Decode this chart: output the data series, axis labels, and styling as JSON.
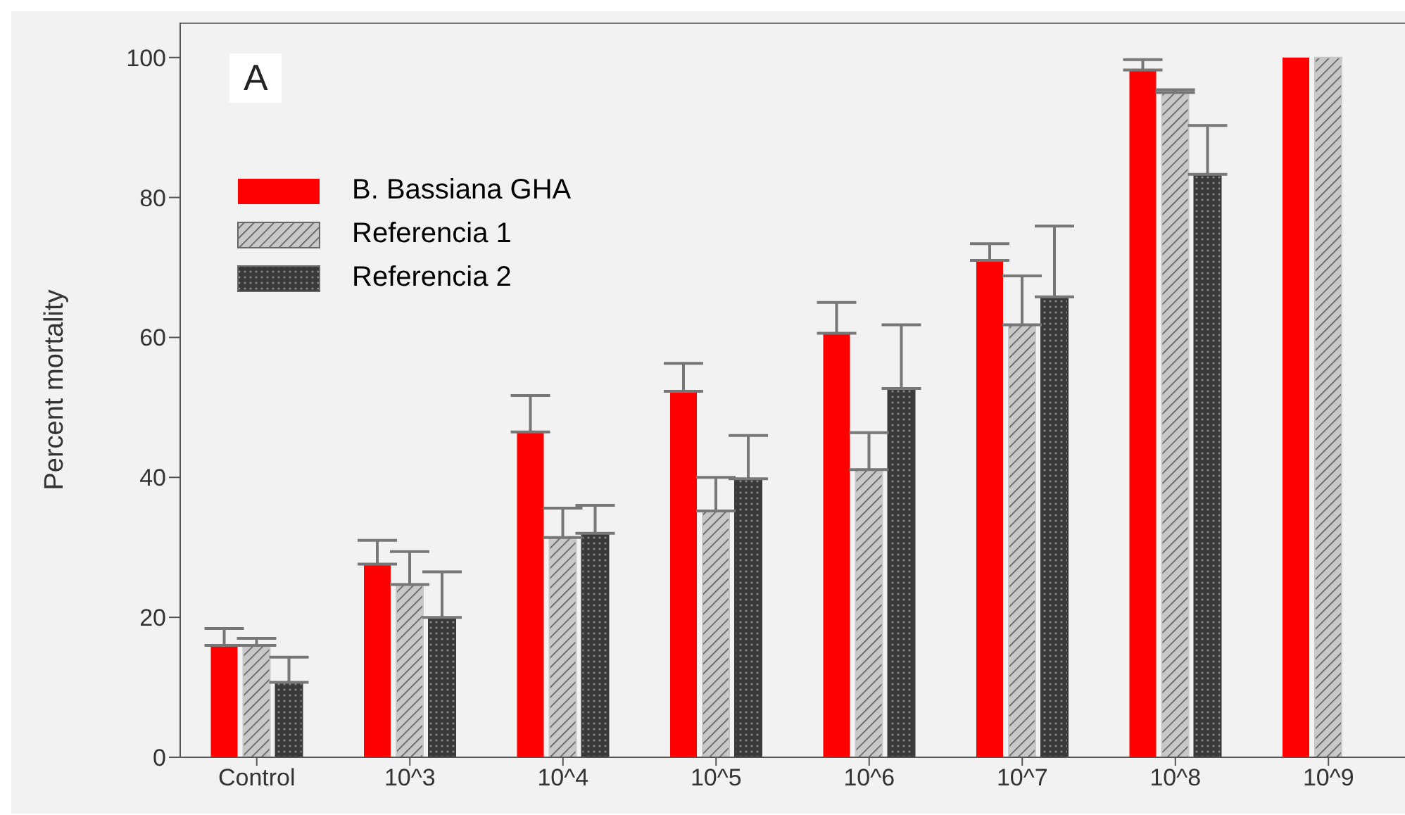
{
  "chart_data": {
    "type": "bar",
    "ylabel": "Percent mortality",
    "annotations": [
      "A"
    ],
    "categories": [
      "Control",
      "10^3",
      "10^4",
      "10^5",
      "10^6",
      "10^7",
      "10^8",
      "10^9"
    ],
    "series": [
      {
        "name": "B. Bassiana GHA",
        "color": "#ff0000",
        "values": [
          16,
          27.6,
          46.5,
          52.3,
          60.6,
          71,
          98.2,
          100
        ],
        "errors": [
          [
            16,
            18.4
          ],
          [
            27.6,
            31
          ],
          [
            46.5,
            51.7
          ],
          [
            52.3,
            56.3
          ],
          [
            60.6,
            65
          ],
          [
            71,
            73.4
          ],
          [
            98.2,
            99.7
          ],
          null
        ]
      },
      {
        "name": "Referencia 1",
        "color": "#c8c8c8",
        "values": [
          16,
          24.7,
          31.4,
          35.2,
          41.1,
          61.8,
          95,
          100
        ],
        "errors": [
          [
            16,
            17
          ],
          [
            24.7,
            29.4
          ],
          [
            31.4,
            35.6
          ],
          [
            35.2,
            40
          ],
          [
            41.1,
            46.4
          ],
          [
            61.8,
            68.8
          ],
          [
            95,
            95.4
          ],
          null
        ]
      },
      {
        "name": "Referencia 2",
        "color": "#3a3a3a",
        "values": [
          10.7,
          20,
          32,
          39.8,
          52.7,
          65.8,
          83.3,
          null
        ],
        "errors": [
          [
            10.7,
            14.3
          ],
          [
            20,
            26.5
          ],
          [
            32,
            36
          ],
          [
            39.8,
            46
          ],
          [
            52.7,
            61.8
          ],
          [
            65.8,
            75.9
          ],
          [
            83.3,
            90.3
          ],
          null
        ]
      }
    ],
    "ylim": [
      0,
      105
    ],
    "yticks": [
      0,
      20,
      40,
      60,
      80,
      100
    ],
    "grid": false,
    "legend": "top left"
  }
}
